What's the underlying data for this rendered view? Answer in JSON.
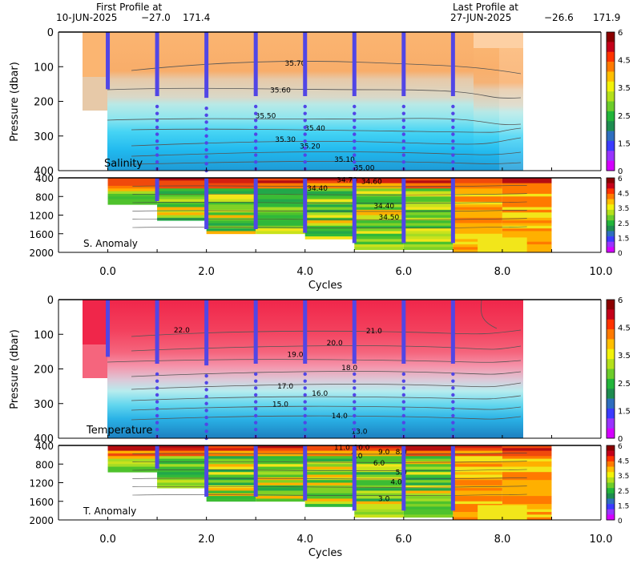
{
  "header": {
    "first_label": "First Profile at",
    "first_date": "10-JUN-2025",
    "first_lat": "−27.0",
    "first_lon": "171.4",
    "last_label": "Last Profile at",
    "last_date": "27-JUN-2025",
    "last_lat": "−26.6",
    "last_lon": "171.9"
  },
  "colorbar_ticks": [
    "6",
    "4.5",
    "3.5",
    "2.5",
    "1.5",
    "0"
  ],
  "colorbar_colors": [
    "#8b0000",
    "#c4001a",
    "#ff3300",
    "#ff7a00",
    "#ffbf00",
    "#f2f20a",
    "#b4e01a",
    "#6ccc2a",
    "#22b43a",
    "#1e8c50",
    "#2e6ebf",
    "#3b3bff",
    "#9933ff",
    "#d400ff"
  ],
  "chart_data": [
    {
      "type": "heatmap",
      "name": "Salinity",
      "label": "Salinity",
      "ylabel": "Pressure (dbar)",
      "ylim": [
        0,
        400
      ],
      "yticks": [
        "0",
        "100",
        "200",
        "300",
        "400"
      ],
      "xlim": [
        -1,
        10
      ],
      "contours": [
        {
          "label": "35.70",
          "x": 3.8,
          "y": 90
        },
        {
          "label": "35.60",
          "x": 3.5,
          "y": 168
        },
        {
          "label": "35.50",
          "x": 3.2,
          "y": 242
        },
        {
          "label": "35.40",
          "x": 4.2,
          "y": 278
        },
        {
          "label": "35.30",
          "x": 3.6,
          "y": 310
        },
        {
          "label": "35.20",
          "x": 4.1,
          "y": 330
        },
        {
          "label": "35.10",
          "x": 4.8,
          "y": 368
        },
        {
          "label": "35.00",
          "x": 5.2,
          "y": 392
        }
      ],
      "profile_cycles": [
        0,
        1,
        2,
        3,
        4,
        5,
        6,
        7
      ],
      "profile_max_pressure": [
        165,
        185,
        190,
        185,
        185,
        185,
        185,
        185
      ]
    },
    {
      "type": "heatmap",
      "name": "S. Anomaly",
      "label": "S. Anomaly",
      "ylim": [
        400,
        2000
      ],
      "yticks": [
        "400",
        "800",
        "1200",
        "1600",
        "2000"
      ],
      "xticks": [
        "0.0",
        "2.0",
        "4.0",
        "6.0",
        "8.0",
        "10.0"
      ],
      "xlabel": "Cycles",
      "contours": [
        {
          "label": "34.70",
          "x": 4.85,
          "y": 440
        },
        {
          "label": "34.60",
          "x": 5.35,
          "y": 480
        },
        {
          "label": "34.40",
          "x": 4.25,
          "y": 620
        },
        {
          "label": "34.40",
          "x": 5.6,
          "y": 1000
        },
        {
          "label": "34.50",
          "x": 5.7,
          "y": 1240
        }
      ]
    },
    {
      "type": "heatmap",
      "name": "Temperature",
      "label": "Temperature",
      "ylabel": "Pressure (dbar)",
      "ylim": [
        0,
        400
      ],
      "yticks": [
        "0",
        "100",
        "200",
        "300",
        "400"
      ],
      "contours": [
        {
          "label": "22.0",
          "x": 1.5,
          "y": 88
        },
        {
          "label": "21.0",
          "x": 5.4,
          "y": 90
        },
        {
          "label": "20.0",
          "x": 4.6,
          "y": 125
        },
        {
          "label": "19.0",
          "x": 3.8,
          "y": 158
        },
        {
          "label": "18.0",
          "x": 4.9,
          "y": 196
        },
        {
          "label": "17.0",
          "x": 3.6,
          "y": 250
        },
        {
          "label": "16.0",
          "x": 4.3,
          "y": 270
        },
        {
          "label": "15.0",
          "x": 3.5,
          "y": 302
        },
        {
          "label": "14.0",
          "x": 4.7,
          "y": 335
        },
        {
          "label": "13.0",
          "x": 5.1,
          "y": 380
        }
      ]
    },
    {
      "type": "heatmap",
      "name": "T. Anomaly",
      "label": "T. Anomaly",
      "ylim": [
        400,
        2000
      ],
      "yticks": [
        "400",
        "800",
        "1200",
        "1600",
        "2000"
      ],
      "xticks": [
        "0.0",
        "2.0",
        "4.0",
        "6.0",
        "8.0",
        "10.0"
      ],
      "xlabel": "Cycles",
      "contours": [
        {
          "label": "11.0",
          "x": 4.75,
          "y": 440
        },
        {
          "label": "10.0",
          "x": 5.15,
          "y": 440
        },
        {
          "label": "9.0",
          "x": 5.6,
          "y": 540
        },
        {
          "label": "8.0",
          "x": 5.95,
          "y": 540
        },
        {
          "label": "7.0",
          "x": 5.05,
          "y": 620
        },
        {
          "label": "6.0",
          "x": 5.5,
          "y": 780
        },
        {
          "label": "5.0",
          "x": 5.95,
          "y": 980
        },
        {
          "label": "4.0",
          "x": 5.85,
          "y": 1180
        },
        {
          "label": "3.0",
          "x": 5.6,
          "y": 1540
        }
      ]
    }
  ]
}
